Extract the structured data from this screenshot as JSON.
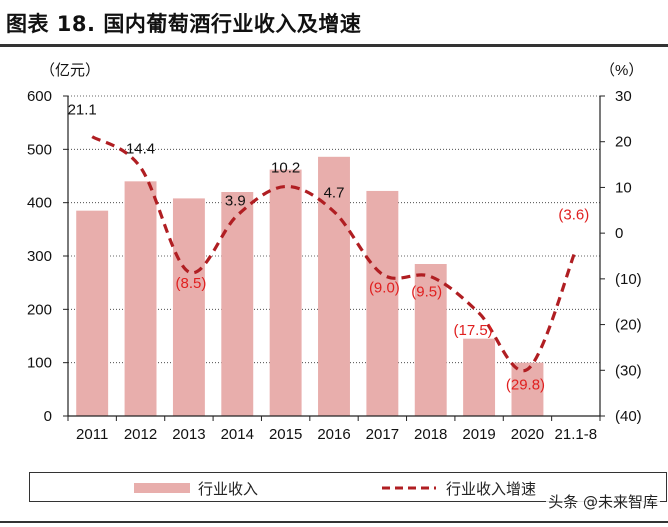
{
  "title": "图表 18. 国内葡萄酒行业收入及增速",
  "watermark": "头条 @未来智库",
  "colors": {
    "bar": "#E8AEAC",
    "line": "#B01E22",
    "neg_label": "#E02020",
    "pos_label": "#111111"
  },
  "chart_data": {
    "type": "bar+line",
    "categories": [
      "2011",
      "2012",
      "2013",
      "2014",
      "2015",
      "2016",
      "2017",
      "2018",
      "2019",
      "2020",
      "21.1-8"
    ],
    "series": [
      {
        "name": "行业收入",
        "axis": "left",
        "type": "bar",
        "values": [
          385,
          440,
          408,
          420,
          462,
          486,
          422,
          285,
          145,
          100,
          null
        ]
      },
      {
        "name": "行业收入增速",
        "axis": "right",
        "type": "line",
        "style": "dashed",
        "values": [
          21.1,
          14.4,
          -8.5,
          3.9,
          10.2,
          4.7,
          -9.0,
          -9.5,
          -17.5,
          -29.8,
          -3.6
        ],
        "labels": [
          "21.1",
          "14.4",
          "(8.5)",
          "3.9",
          "10.2",
          "4.7",
          "(9.0)",
          "(9.5)",
          "(17.5)",
          "(29.8)",
          "(3.6)"
        ]
      }
    ],
    "left_axis": {
      "unit_label": "（亿元）",
      "ylim": [
        0,
        600
      ],
      "ticks": [
        "0",
        "100",
        "200",
        "300",
        "400",
        "500",
        "600"
      ]
    },
    "right_axis": {
      "unit_label": "（%）",
      "ylim": [
        -40,
        30
      ],
      "ticks": [
        "30",
        "20",
        "10",
        "0",
        "(10)",
        "(20)",
        "(30)",
        "(40)"
      ]
    },
    "legend": [
      {
        "key": "bar",
        "label": "行业收入"
      },
      {
        "key": "line",
        "label": "行业收入增速"
      }
    ],
    "legend_position": "bottom"
  }
}
